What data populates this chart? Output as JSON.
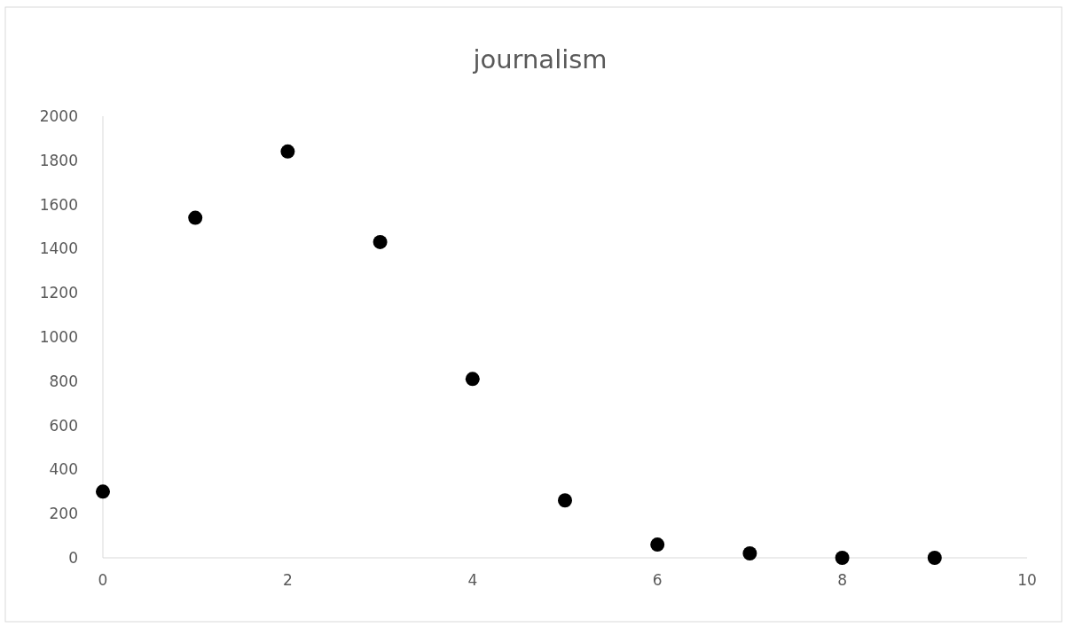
{
  "chart_data": {
    "type": "scatter",
    "title": "journalism",
    "x": [
      0,
      1,
      2,
      3,
      4,
      5,
      6,
      7,
      8,
      9
    ],
    "series": [
      {
        "color": "#000000",
        "values": [
          300,
          1540,
          1840,
          1430,
          810,
          260,
          60,
          20,
          0,
          0
        ]
      }
    ],
    "xlim": [
      0,
      10
    ],
    "xticks": [
      0,
      2,
      4,
      6,
      8,
      10
    ],
    "ylim": [
      0,
      2000
    ],
    "yticks": [
      0,
      200,
      400,
      600,
      800,
      1000,
      1200,
      1400,
      1600,
      1800,
      2000
    ],
    "grid": false,
    "marker": "circle"
  }
}
